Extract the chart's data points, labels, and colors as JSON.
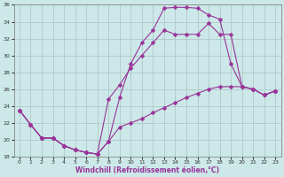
{
  "xlabel": "Windchill (Refroidissement éolien,°C)",
  "bg_color": "#cce8e8",
  "grid_color": "#b0c8c8",
  "line_color": "#993399",
  "xlim": [
    -0.5,
    23.5
  ],
  "ylim": [
    18,
    36
  ],
  "xticks": [
    0,
    1,
    2,
    3,
    4,
    5,
    6,
    7,
    8,
    9,
    10,
    11,
    12,
    13,
    14,
    15,
    16,
    17,
    18,
    19,
    20,
    21,
    22,
    23
  ],
  "yticks": [
    18,
    20,
    22,
    24,
    26,
    28,
    30,
    32,
    34,
    36
  ],
  "line1_x": [
    0,
    1,
    2,
    3,
    4,
    5,
    6,
    7,
    8,
    9,
    10,
    11,
    12,
    13,
    14,
    15,
    16,
    17,
    18,
    19,
    20,
    21,
    22,
    23
  ],
  "line1_y": [
    23.5,
    21.8,
    20.2,
    20.2,
    19.3,
    18.8,
    18.5,
    18.3,
    19.8,
    25.0,
    29.0,
    31.5,
    33.0,
    35.6,
    35.7,
    35.7,
    35.6,
    34.8,
    34.3,
    29.0,
    26.3,
    26.0,
    25.3,
    25.8
  ],
  "line2_x": [
    0,
    1,
    2,
    3,
    4,
    5,
    6,
    7,
    8,
    9,
    10,
    11,
    12,
    13,
    14,
    15,
    16,
    17,
    18,
    19,
    20,
    21,
    22,
    23
  ],
  "line2_y": [
    23.5,
    21.8,
    20.2,
    20.2,
    19.3,
    18.8,
    18.5,
    18.3,
    24.8,
    26.5,
    28.5,
    30.0,
    31.5,
    33.0,
    32.5,
    32.5,
    32.5,
    33.8,
    32.5,
    32.5,
    26.3,
    26.0,
    25.3,
    25.8
  ],
  "line3_x": [
    0,
    1,
    2,
    3,
    4,
    5,
    6,
    7,
    8,
    9,
    10,
    11,
    12,
    13,
    14,
    15,
    16,
    17,
    18,
    19,
    20,
    21,
    22,
    23
  ],
  "line3_y": [
    23.5,
    21.8,
    20.2,
    20.2,
    19.3,
    18.8,
    18.5,
    18.3,
    19.8,
    21.5,
    22.0,
    22.5,
    23.2,
    23.8,
    24.4,
    25.0,
    25.5,
    26.0,
    26.3,
    26.3,
    26.3,
    26.0,
    25.3,
    25.8
  ],
  "marker_size": 2.5,
  "line_width": 0.8
}
